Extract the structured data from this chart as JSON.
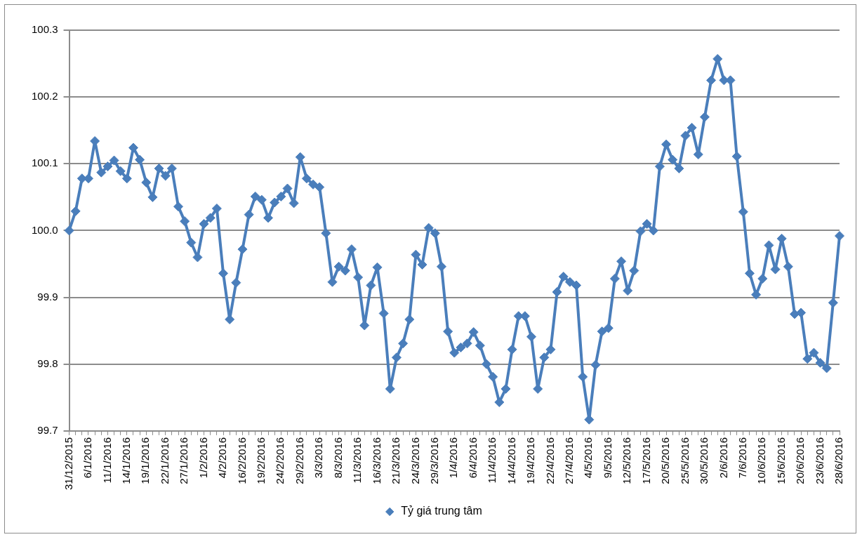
{
  "chart_data": {
    "type": "line",
    "categories": [
      "31/12/2015",
      null,
      null,
      "6/1/2016",
      null,
      null,
      "11/1/2016",
      null,
      null,
      "14/1/2016",
      null,
      null,
      "19/1/2016",
      null,
      null,
      "22/1/2016",
      null,
      null,
      "27/1/2016",
      null,
      null,
      "1/2/2016",
      null,
      null,
      "4/2/2016",
      null,
      null,
      "16/2/2016",
      null,
      null,
      "19/2/2016",
      null,
      null,
      "24/2/2016",
      null,
      null,
      "29/2/2016",
      null,
      null,
      "3/3/2016",
      null,
      null,
      "8/3/2016",
      null,
      null,
      "11/3/2016",
      null,
      null,
      "16/3/2016",
      null,
      null,
      "21/3/2016",
      null,
      null,
      "24/3/2016",
      null,
      null,
      "29/3/2016",
      null,
      null,
      "1/4/2016",
      null,
      null,
      "6/4/2016",
      null,
      null,
      "11/4/2016",
      null,
      null,
      "14/4/2016",
      null,
      null,
      "19/4/2016",
      null,
      null,
      "22/4/2016",
      null,
      null,
      "27/4/2016",
      null,
      null,
      "4/5/2016",
      null,
      null,
      "9/5/2016",
      null,
      null,
      "12/5/2016",
      null,
      null,
      "17/5/2016",
      null,
      null,
      "20/5/2016",
      null,
      null,
      "25/5/2016",
      null,
      null,
      "30/5/2016",
      null,
      null,
      "2/6/2016",
      null,
      null,
      "7/6/2016",
      null,
      null,
      "10/6/2016",
      null,
      null,
      "15/6/2016",
      null,
      null,
      "20/6/2016",
      null,
      null,
      "23/6/2016",
      null,
      null,
      "28/6/2016"
    ],
    "series": [
      {
        "name": "Tỷ giá trung tâm",
        "color": "#4a7ebb",
        "values": [
          100.0,
          100.029,
          100.078,
          100.078,
          100.134,
          100.087,
          100.096,
          100.105,
          100.089,
          100.078,
          100.124,
          100.106,
          100.072,
          100.05,
          100.093,
          100.082,
          100.093,
          100.036,
          100.014,
          99.982,
          99.96,
          100.01,
          100.019,
          100.033,
          99.936,
          99.867,
          99.922,
          99.972,
          100.024,
          100.051,
          100.046,
          100.019,
          100.042,
          100.051,
          100.063,
          100.041,
          100.11,
          100.078,
          100.069,
          100.065,
          99.996,
          99.923,
          99.946,
          99.94,
          99.972,
          99.93,
          99.858,
          99.918,
          99.945,
          99.876,
          99.763,
          99.81,
          99.831,
          99.867,
          99.964,
          99.949,
          100.004,
          99.996,
          99.946,
          99.849,
          99.817,
          99.825,
          99.831,
          99.848,
          99.828,
          99.8,
          99.781,
          99.743,
          99.763,
          99.822,
          99.872,
          99.872,
          99.841,
          99.763,
          99.81,
          99.822,
          99.908,
          99.931,
          99.923,
          99.918,
          99.781,
          99.717,
          99.799,
          99.849,
          99.854,
          99.928,
          99.954,
          99.91,
          99.94,
          99.999,
          100.01,
          100.0,
          100.096,
          100.129,
          100.106,
          100.093,
          100.142,
          100.154,
          100.114,
          100.17,
          100.225,
          100.257,
          100.225,
          100.225,
          100.111,
          100.028,
          99.936,
          99.904,
          99.928,
          99.978,
          99.942,
          99.988,
          99.946,
          99.875,
          99.877,
          99.808,
          99.817,
          99.802,
          99.794,
          99.892,
          99.992
        ]
      }
    ],
    "ylim": [
      99.7,
      100.3
    ],
    "yticks": [
      {
        "value": 99.7,
        "label": "99.7"
      },
      {
        "value": 99.8,
        "label": "99.8"
      },
      {
        "value": 99.9,
        "label": "99.9"
      },
      {
        "value": 100.0,
        "label": "100.0"
      },
      {
        "value": 100.1,
        "label": "100.1"
      },
      {
        "value": 100.2,
        "label": "100.2"
      },
      {
        "value": 100.3,
        "label": "100.3"
      }
    ],
    "grid": "y",
    "legend": "bottom",
    "marker": "diamond",
    "line_style": "solid"
  }
}
